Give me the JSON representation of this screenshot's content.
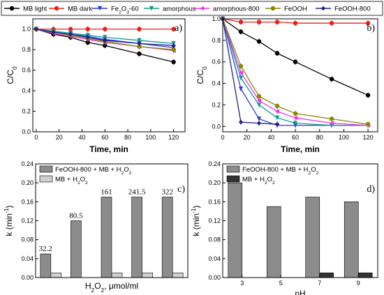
{
  "legend": [
    {
      "name": "MB light",
      "color": "#000000",
      "marker": "circle"
    },
    {
      "name": "MB dark",
      "color": "#e8221b",
      "marker": "circle"
    },
    {
      "name": "Fe2O3-60",
      "color": "#2b3bd8",
      "marker": "triangle-down"
    },
    {
      "name": "amorphous",
      "color": "#0b9a93",
      "marker": "triangle-down"
    },
    {
      "name": "amorphous-800",
      "color": "#ee33ee",
      "marker": "triangle-left"
    },
    {
      "name": "FeOOH",
      "color": "#888800",
      "marker": "circle"
    },
    {
      "name": "FeOOH-800",
      "color": "#1f1f8a",
      "marker": "diamond"
    }
  ],
  "chart_data": [
    {
      "panel": "a)",
      "type": "line",
      "xlabel": "Time, min",
      "ylabel": "C/C0",
      "xlim": [
        -3,
        130
      ],
      "ylim": [
        0,
        1.1
      ],
      "xticks": [
        0,
        20,
        40,
        60,
        80,
        100,
        120
      ],
      "yticks": [
        0.0,
        0.2,
        0.4,
        0.6,
        0.8,
        1.0
      ],
      "yticklabels": [
        "0.0",
        "0.2",
        "0.4",
        "0.6",
        "0.8",
        "1.0"
      ],
      "series": [
        {
          "name": "MB light",
          "x": [
            0,
            15,
            30,
            45,
            60,
            90,
            120
          ],
          "y": [
            1.0,
            0.95,
            0.92,
            0.87,
            0.84,
            0.76,
            0.68
          ]
        },
        {
          "name": "MB dark",
          "x": [
            0,
            15,
            30,
            45,
            60,
            90,
            120
          ],
          "y": [
            1.0,
            1.0,
            1.0,
            1.0,
            1.0,
            1.0,
            1.0
          ]
        },
        {
          "name": "Fe2O3-60",
          "x": [
            0,
            15,
            30,
            45,
            60,
            90,
            120
          ],
          "y": [
            1.0,
            0.97,
            0.95,
            0.93,
            0.9,
            0.86,
            0.82
          ]
        },
        {
          "name": "amorphous",
          "x": [
            0,
            15,
            30,
            45,
            60,
            90,
            120
          ],
          "y": [
            1.0,
            0.98,
            0.96,
            0.94,
            0.92,
            0.89,
            0.86
          ]
        },
        {
          "name": "amorphous-800",
          "x": [
            0,
            15,
            30,
            45,
            60,
            90,
            120
          ],
          "y": [
            1.0,
            0.96,
            0.93,
            0.9,
            0.87,
            0.83,
            0.79
          ]
        },
        {
          "name": "FeOOH",
          "x": [
            0,
            15,
            30,
            45,
            60,
            90,
            120
          ],
          "y": [
            1.0,
            0.97,
            0.94,
            0.91,
            0.88,
            0.83,
            0.8
          ]
        },
        {
          "name": "FeOOH-800",
          "x": [
            0,
            15,
            30,
            45,
            60,
            90,
            120
          ],
          "y": [
            1.0,
            0.97,
            0.95,
            0.92,
            0.89,
            0.86,
            0.84
          ]
        }
      ]
    },
    {
      "panel": "b)",
      "type": "line",
      "xlabel": "Time, min",
      "ylabel": "C/C0",
      "xlim": [
        0,
        128
      ],
      "ylim": [
        -0.05,
        1.0
      ],
      "xticks": [
        0,
        20,
        40,
        60,
        80,
        100,
        120
      ],
      "yticks": [
        0.0,
        0.2,
        0.4,
        0.6,
        0.8,
        1.0
      ],
      "yticklabels": [
        "0.0",
        "0.2",
        "0.4",
        "0.6",
        "0.8",
        "1.0"
      ],
      "series": [
        {
          "name": "MB light",
          "x": [
            0,
            15,
            30,
            45,
            60,
            90,
            120
          ],
          "y": [
            1.0,
            0.88,
            0.79,
            0.68,
            0.6,
            0.44,
            0.29
          ]
        },
        {
          "name": "MB dark",
          "x": [
            0,
            15,
            30,
            45,
            60,
            90,
            120
          ],
          "y": [
            1.0,
            0.97,
            0.97,
            0.97,
            0.96,
            0.96,
            0.96
          ]
        },
        {
          "name": "Fe2O3-60",
          "x": [
            0,
            15,
            30,
            45,
            60,
            90,
            120
          ],
          "y": [
            1.0,
            0.35,
            0.07,
            0.01,
            0.01,
            0.01,
            0.01
          ]
        },
        {
          "name": "amorphous",
          "x": [
            0,
            15,
            30,
            45,
            60,
            90,
            120
          ],
          "y": [
            1.0,
            0.45,
            0.2,
            0.08,
            0.03,
            0.01,
            0.01
          ]
        },
        {
          "name": "amorphous-800",
          "x": [
            0,
            15,
            30,
            45,
            60,
            90,
            120
          ],
          "y": [
            1.0,
            0.5,
            0.24,
            0.14,
            0.08,
            0.03,
            0.01
          ]
        },
        {
          "name": "FeOOH",
          "x": [
            0,
            15,
            30,
            45,
            60,
            90,
            120
          ],
          "y": [
            1.0,
            0.56,
            0.28,
            0.19,
            0.12,
            0.07,
            0.02
          ]
        },
        {
          "name": "FeOOH-800",
          "x": [
            0,
            15,
            30,
            45
          ],
          "y": [
            1.0,
            0.04,
            0.03,
            0.02
          ]
        }
      ]
    },
    {
      "panel": "c)",
      "type": "bar",
      "xlabel": "H2O2, μmol/ml",
      "ylabel": "k (min-1)",
      "ylim": [
        0,
        0.24
      ],
      "yticks": [
        0.0,
        0.04,
        0.08,
        0.12,
        0.16,
        0.2,
        0.24
      ],
      "yticklabels": [
        "0.00",
        "0.04",
        "0.08",
        "0.12",
        "0.16",
        "0.20",
        "0.24"
      ],
      "categories": [
        "32.2",
        "80.5",
        "161",
        "241.5",
        "322"
      ],
      "series": [
        {
          "name": "FeOOH-800 + MB + H2O2",
          "values": [
            0.05,
            0.12,
            0.17,
            0.17,
            0.17
          ],
          "color": "#8c8c8c"
        },
        {
          "name": "MB + H2O2",
          "values": [
            0.01,
            null,
            0.01,
            0.01,
            0.01
          ],
          "color": "#cfcfcf"
        }
      ]
    },
    {
      "panel": "d)",
      "type": "bar",
      "xlabel": "pH",
      "ylabel": "k (min-1)",
      "ylim": [
        0,
        0.24
      ],
      "yticks": [
        0.0,
        0.04,
        0.08,
        0.12,
        0.16,
        0.2,
        0.24
      ],
      "yticklabels": [
        "0.00",
        "0.04",
        "0.08",
        "0.12",
        "0.16",
        "0.20",
        "0.24"
      ],
      "categories": [
        "3",
        "5",
        "7",
        "9"
      ],
      "series": [
        {
          "name": "FeOOH-800 + MB + H2O2",
          "values": [
            0.2,
            0.15,
            0.17,
            0.16
          ],
          "color": "#8c8c8c"
        },
        {
          "name": "MB + H2O2",
          "values": [
            null,
            null,
            0.01,
            0.01
          ],
          "color": "#333333"
        }
      ]
    }
  ]
}
